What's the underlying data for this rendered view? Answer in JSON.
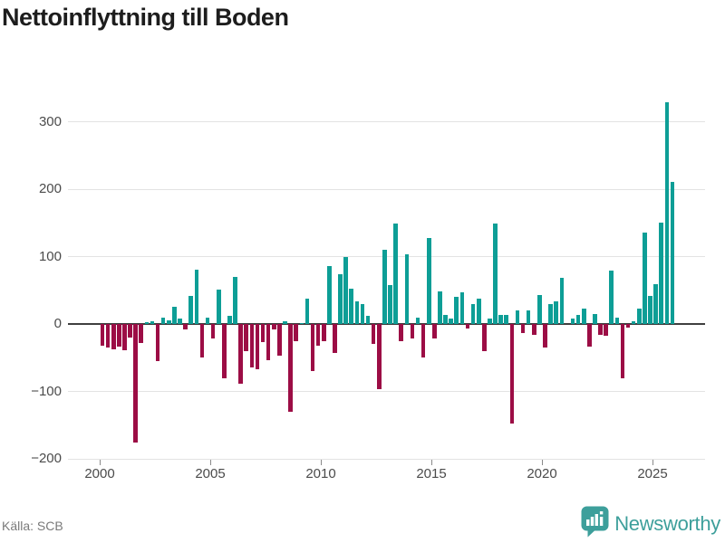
{
  "title": "Nettoinflyttning till Boden",
  "source": "Källa: SCB",
  "brand": {
    "name": "Newsworthy",
    "icon": "bar-chart-bubble-icon",
    "color": "#3d9f9b"
  },
  "colors": {
    "positive": "#0d9e96",
    "negative": "#9c0d45",
    "grid": "#e3e3e3",
    "zero_line": "#3f3f3f",
    "title_text": "#1d1d1d",
    "axis_text": "#4b4b4b",
    "source_text": "#7a7a7a",
    "background": "#ffffff"
  },
  "chart_data": {
    "type": "bar",
    "title": "Nettoinflyttning till Boden",
    "xlabel": "",
    "ylabel": "",
    "frequency": "quarterly",
    "start": "2000 Q1",
    "end": "2025 Q4",
    "x_tick_labels": [
      "2000",
      "2005",
      "2010",
      "2015",
      "2020",
      "2025"
    ],
    "y_ticks": [
      300,
      200,
      100,
      0,
      -100,
      -200
    ],
    "ylim": [
      -200,
      340
    ],
    "grid": true,
    "legend": "none",
    "series": [
      {
        "name": "Nettoinflyttning",
        "values": [
          -32,
          -35,
          -38,
          -34,
          -39,
          -20,
          -176,
          -28,
          3,
          4,
          -55,
          10,
          5,
          26,
          8,
          -8,
          41,
          81,
          -49,
          9,
          -22,
          51,
          -80,
          12,
          70,
          -89,
          -40,
          -64,
          -67,
          -27,
          -54,
          -8,
          -47,
          4,
          -130,
          -25,
          2,
          37,
          -70,
          -32,
          -25,
          86,
          -43,
          74,
          100,
          53,
          33,
          29,
          12,
          -30,
          -97,
          110,
          58,
          149,
          -26,
          104,
          -21,
          9,
          -50,
          128,
          -21,
          49,
          14,
          8,
          40,
          47,
          -7,
          30,
          38,
          -40,
          8,
          149,
          14,
          13,
          -148,
          20,
          -14,
          20,
          -16,
          43,
          -35,
          30,
          34,
          69,
          0,
          8,
          14,
          23,
          -34,
          15,
          -16,
          -18,
          79,
          10,
          -81,
          -6,
          4,
          23,
          136,
          41,
          59,
          151,
          329,
          211
        ]
      }
    ]
  }
}
